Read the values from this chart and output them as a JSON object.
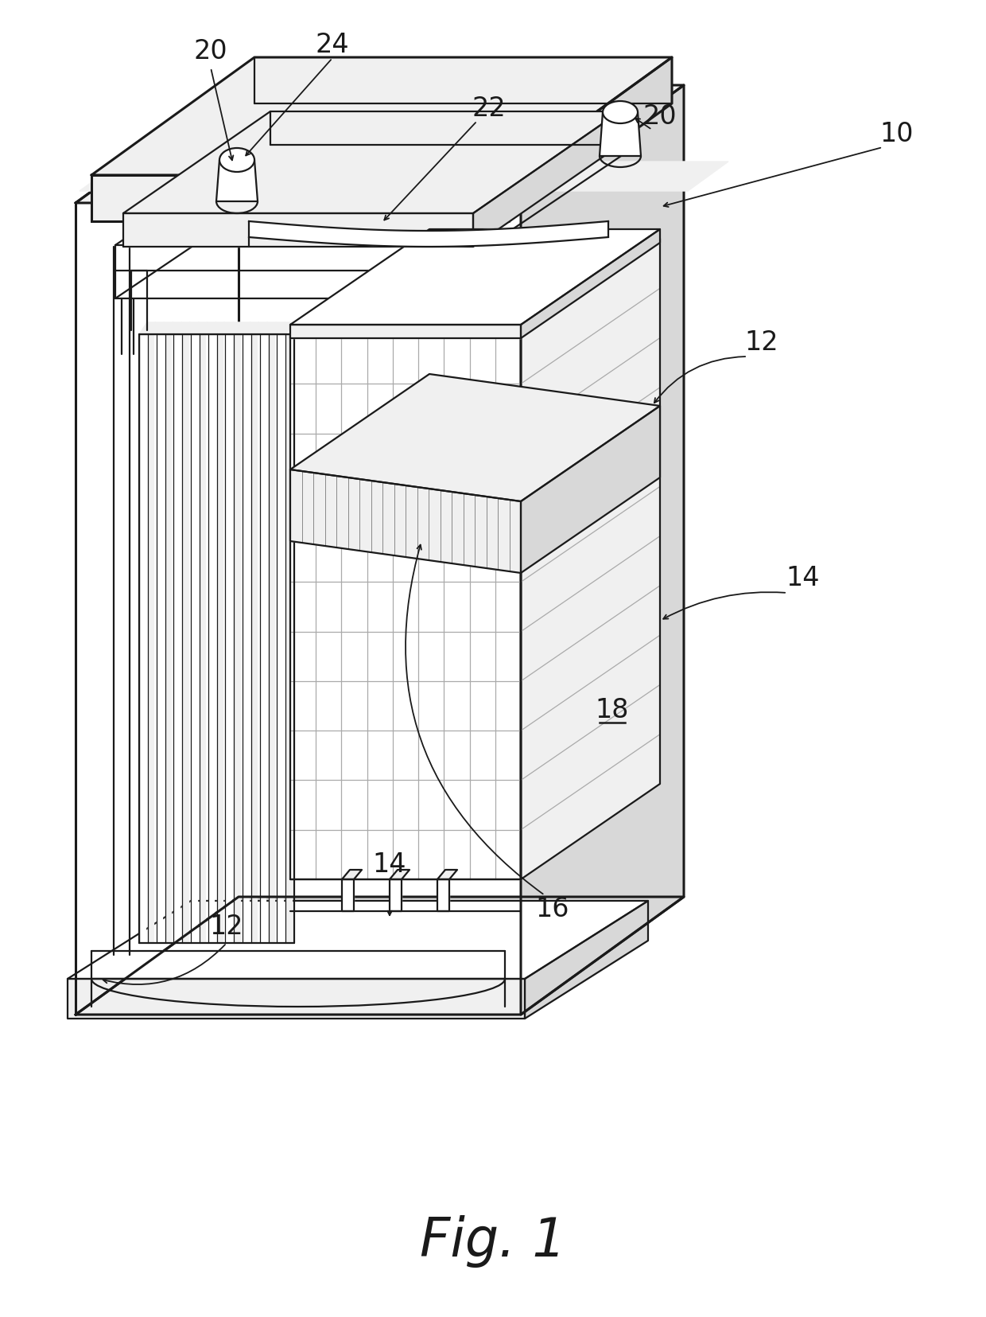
{
  "fig_label": "Fig. 1",
  "fig_label_fontsize": 48,
  "background_color": "#ffffff",
  "line_color": "#1a1a1a",
  "label_fontsize": 24,
  "lw": 1.6,
  "lw_thick": 2.2,
  "lw_thin": 0.9
}
